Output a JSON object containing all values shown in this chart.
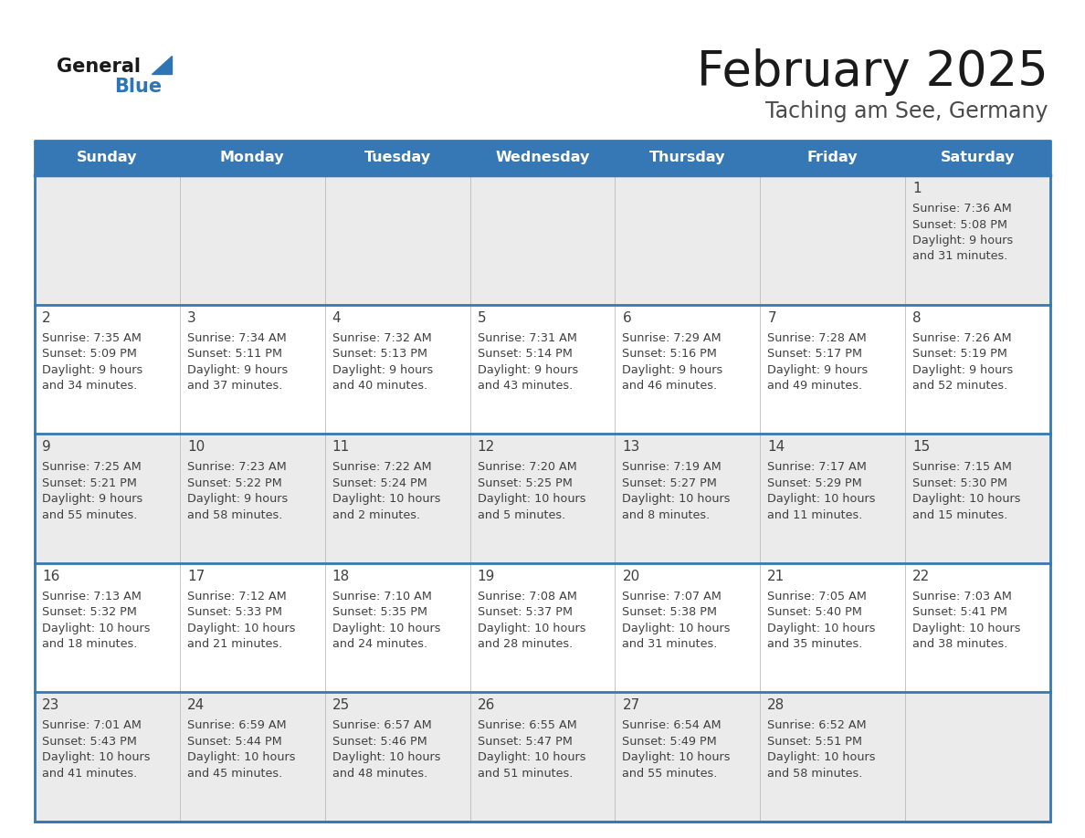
{
  "title": "February 2025",
  "subtitle": "Taching am See, Germany",
  "days_of_week": [
    "Sunday",
    "Monday",
    "Tuesday",
    "Wednesday",
    "Thursday",
    "Friday",
    "Saturday"
  ],
  "header_bg": "#3578B5",
  "header_text_color": "#FFFFFF",
  "row0_bg": "#EBEBEB",
  "row_odd_bg": "#EBEBEB",
  "row_even_bg": "#FFFFFF",
  "border_color": "#3578B5",
  "sep_line_color": "#3578B5",
  "text_color": "#404040",
  "day_number_color": "#404040",
  "calendar_data": [
    [
      null,
      null,
      null,
      null,
      null,
      null,
      {
        "day": 1,
        "sunrise": "7:36 AM",
        "sunset": "5:08 PM",
        "daylight": "9 hours",
        "daylight2": "and 31 minutes."
      }
    ],
    [
      {
        "day": 2,
        "sunrise": "7:35 AM",
        "sunset": "5:09 PM",
        "daylight": "9 hours",
        "daylight2": "and 34 minutes."
      },
      {
        "day": 3,
        "sunrise": "7:34 AM",
        "sunset": "5:11 PM",
        "daylight": "9 hours",
        "daylight2": "and 37 minutes."
      },
      {
        "day": 4,
        "sunrise": "7:32 AM",
        "sunset": "5:13 PM",
        "daylight": "9 hours",
        "daylight2": "and 40 minutes."
      },
      {
        "day": 5,
        "sunrise": "7:31 AM",
        "sunset": "5:14 PM",
        "daylight": "9 hours",
        "daylight2": "and 43 minutes."
      },
      {
        "day": 6,
        "sunrise": "7:29 AM",
        "sunset": "5:16 PM",
        "daylight": "9 hours",
        "daylight2": "and 46 minutes."
      },
      {
        "day": 7,
        "sunrise": "7:28 AM",
        "sunset": "5:17 PM",
        "daylight": "9 hours",
        "daylight2": "and 49 minutes."
      },
      {
        "day": 8,
        "sunrise": "7:26 AM",
        "sunset": "5:19 PM",
        "daylight": "9 hours",
        "daylight2": "and 52 minutes."
      }
    ],
    [
      {
        "day": 9,
        "sunrise": "7:25 AM",
        "sunset": "5:21 PM",
        "daylight": "9 hours",
        "daylight2": "and 55 minutes."
      },
      {
        "day": 10,
        "sunrise": "7:23 AM",
        "sunset": "5:22 PM",
        "daylight": "9 hours",
        "daylight2": "and 58 minutes."
      },
      {
        "day": 11,
        "sunrise": "7:22 AM",
        "sunset": "5:24 PM",
        "daylight": "10 hours",
        "daylight2": "and 2 minutes."
      },
      {
        "day": 12,
        "sunrise": "7:20 AM",
        "sunset": "5:25 PM",
        "daylight": "10 hours",
        "daylight2": "and 5 minutes."
      },
      {
        "day": 13,
        "sunrise": "7:19 AM",
        "sunset": "5:27 PM",
        "daylight": "10 hours",
        "daylight2": "and 8 minutes."
      },
      {
        "day": 14,
        "sunrise": "7:17 AM",
        "sunset": "5:29 PM",
        "daylight": "10 hours",
        "daylight2": "and 11 minutes."
      },
      {
        "day": 15,
        "sunrise": "7:15 AM",
        "sunset": "5:30 PM",
        "daylight": "10 hours",
        "daylight2": "and 15 minutes."
      }
    ],
    [
      {
        "day": 16,
        "sunrise": "7:13 AM",
        "sunset": "5:32 PM",
        "daylight": "10 hours",
        "daylight2": "and 18 minutes."
      },
      {
        "day": 17,
        "sunrise": "7:12 AM",
        "sunset": "5:33 PM",
        "daylight": "10 hours",
        "daylight2": "and 21 minutes."
      },
      {
        "day": 18,
        "sunrise": "7:10 AM",
        "sunset": "5:35 PM",
        "daylight": "10 hours",
        "daylight2": "and 24 minutes."
      },
      {
        "day": 19,
        "sunrise": "7:08 AM",
        "sunset": "5:37 PM",
        "daylight": "10 hours",
        "daylight2": "and 28 minutes."
      },
      {
        "day": 20,
        "sunrise": "7:07 AM",
        "sunset": "5:38 PM",
        "daylight": "10 hours",
        "daylight2": "and 31 minutes."
      },
      {
        "day": 21,
        "sunrise": "7:05 AM",
        "sunset": "5:40 PM",
        "daylight": "10 hours",
        "daylight2": "and 35 minutes."
      },
      {
        "day": 22,
        "sunrise": "7:03 AM",
        "sunset": "5:41 PM",
        "daylight": "10 hours",
        "daylight2": "and 38 minutes."
      }
    ],
    [
      {
        "day": 23,
        "sunrise": "7:01 AM",
        "sunset": "5:43 PM",
        "daylight": "10 hours",
        "daylight2": "and 41 minutes."
      },
      {
        "day": 24,
        "sunrise": "6:59 AM",
        "sunset": "5:44 PM",
        "daylight": "10 hours",
        "daylight2": "and 45 minutes."
      },
      {
        "day": 25,
        "sunrise": "6:57 AM",
        "sunset": "5:46 PM",
        "daylight": "10 hours",
        "daylight2": "and 48 minutes."
      },
      {
        "day": 26,
        "sunrise": "6:55 AM",
        "sunset": "5:47 PM",
        "daylight": "10 hours",
        "daylight2": "and 51 minutes."
      },
      {
        "day": 27,
        "sunrise": "6:54 AM",
        "sunset": "5:49 PM",
        "daylight": "10 hours",
        "daylight2": "and 55 minutes."
      },
      {
        "day": 28,
        "sunrise": "6:52 AM",
        "sunset": "5:51 PM",
        "daylight": "10 hours",
        "daylight2": "and 58 minutes."
      },
      null
    ]
  ]
}
